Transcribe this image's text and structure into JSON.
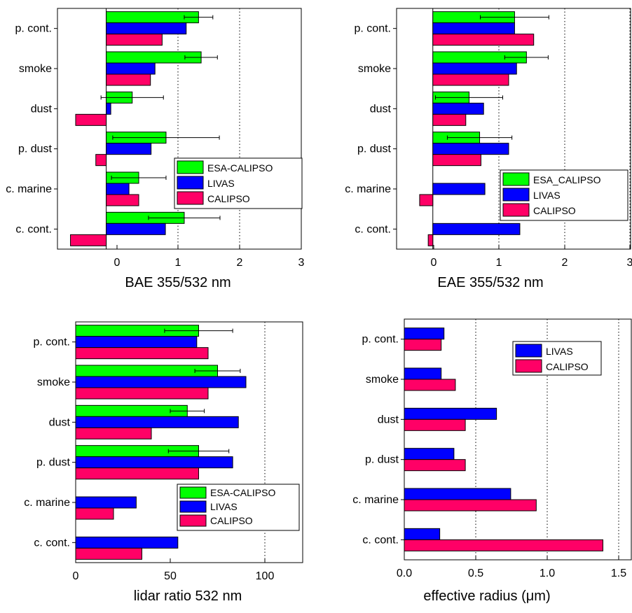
{
  "chart_data": [
    {
      "type": "bar",
      "orientation": "horizontal",
      "categories": [
        "p. cont.",
        "smoke",
        "dust",
        "p. dust",
        "c. marine",
        "c. cont."
      ],
      "xlabel": "BAE  355/532 nm",
      "xlim": [
        -0.75,
        3
      ],
      "xticks": [
        "0",
        "1",
        "2",
        "3"
      ],
      "grid": "vertical dotted at x = 1, 2",
      "legend_placement": "bottom-right",
      "series": [
        {
          "name": "ESA-CALIPSO",
          "color": "#00ff00",
          "values": [
            1.42,
            1.46,
            0.4,
            0.92,
            0.5,
            1.2
          ],
          "error": [
            0.22,
            0.25,
            0.48,
            0.82,
            0.42,
            0.55
          ]
        },
        {
          "name": "LIVAS",
          "color": "#0000ff",
          "values": [
            1.23,
            0.75,
            0.07,
            0.69,
            0.35,
            0.91
          ]
        },
        {
          "name": "CALIPSO",
          "color": "#ff0066",
          "values": [
            0.86,
            0.68,
            -0.47,
            -0.16,
            0.5,
            -0.55
          ]
        }
      ]
    },
    {
      "type": "bar",
      "orientation": "horizontal",
      "categories": [
        "p. cont.",
        "smoke",
        "dust",
        "p. dust",
        "c. marine",
        "c. cont."
      ],
      "xlabel": "EAE  355/532 nm",
      "xlim": [
        -0.55,
        3
      ],
      "xticks": [
        "0",
        "1",
        "2",
        "3"
      ],
      "grid": "vertical dotted at x = 1, 2, 3",
      "legend_placement": "middle-right",
      "series": [
        {
          "name": "ESA_CALIPSO",
          "color": "#00ff00",
          "values": [
            1.24,
            1.42,
            0.55,
            0.71,
            null,
            null
          ],
          "error": [
            0.52,
            0.33,
            0.51,
            0.49,
            null,
            null
          ]
        },
        {
          "name": "LIVAS",
          "color": "#0000ff",
          "values": [
            1.24,
            1.27,
            0.77,
            1.15,
            0.79,
            1.32
          ]
        },
        {
          "name": "CALIPSO",
          "color": "#ff0066",
          "values": [
            1.53,
            1.15,
            0.5,
            0.73,
            -0.2,
            -0.07
          ]
        }
      ]
    },
    {
      "type": "bar",
      "orientation": "horizontal",
      "categories": [
        "p. cont.",
        "smoke",
        "dust",
        "p. dust",
        "c. marine",
        "c. cont."
      ],
      "xlabel": "lidar ratio 532 nm",
      "xlim": [
        0,
        120
      ],
      "xticks": [
        "0",
        "50",
        "100"
      ],
      "grid": "vertical dotted at x = 100",
      "legend_placement": "bottom-right",
      "series": [
        {
          "name": "ESA-CALIPSO",
          "color": "#00ff00",
          "values": [
            65,
            75,
            59,
            65,
            null,
            null
          ],
          "error": [
            18,
            12,
            9,
            16,
            null,
            null
          ]
        },
        {
          "name": "LIVAS",
          "color": "#0000ff",
          "values": [
            64,
            90,
            86,
            83,
            32,
            54
          ]
        },
        {
          "name": "CALIPSO",
          "color": "#ff0066",
          "values": [
            70,
            70,
            40,
            65,
            20,
            35
          ]
        }
      ]
    },
    {
      "type": "bar",
      "orientation": "horizontal",
      "categories": [
        "p. cont.",
        "smoke",
        "dust",
        "p. dust",
        "c. marine",
        "c. cont."
      ],
      "xlabel": "effective radius  (μm)",
      "xlim": [
        0,
        1.6
      ],
      "xticks": [
        "0.0",
        "0.5",
        "1.0",
        "1.5"
      ],
      "grid": "vertical dotted at x = 0.5, 1.0, 1.5",
      "legend_placement": "top-right",
      "series": [
        {
          "name": "LIVAS",
          "color": "#0000ff",
          "values": [
            0.28,
            0.26,
            0.65,
            0.35,
            0.75,
            0.25
          ]
        },
        {
          "name": "CALIPSO",
          "color": "#ff0066",
          "values": [
            0.26,
            0.36,
            0.43,
            0.43,
            0.93,
            1.4
          ]
        }
      ]
    }
  ]
}
